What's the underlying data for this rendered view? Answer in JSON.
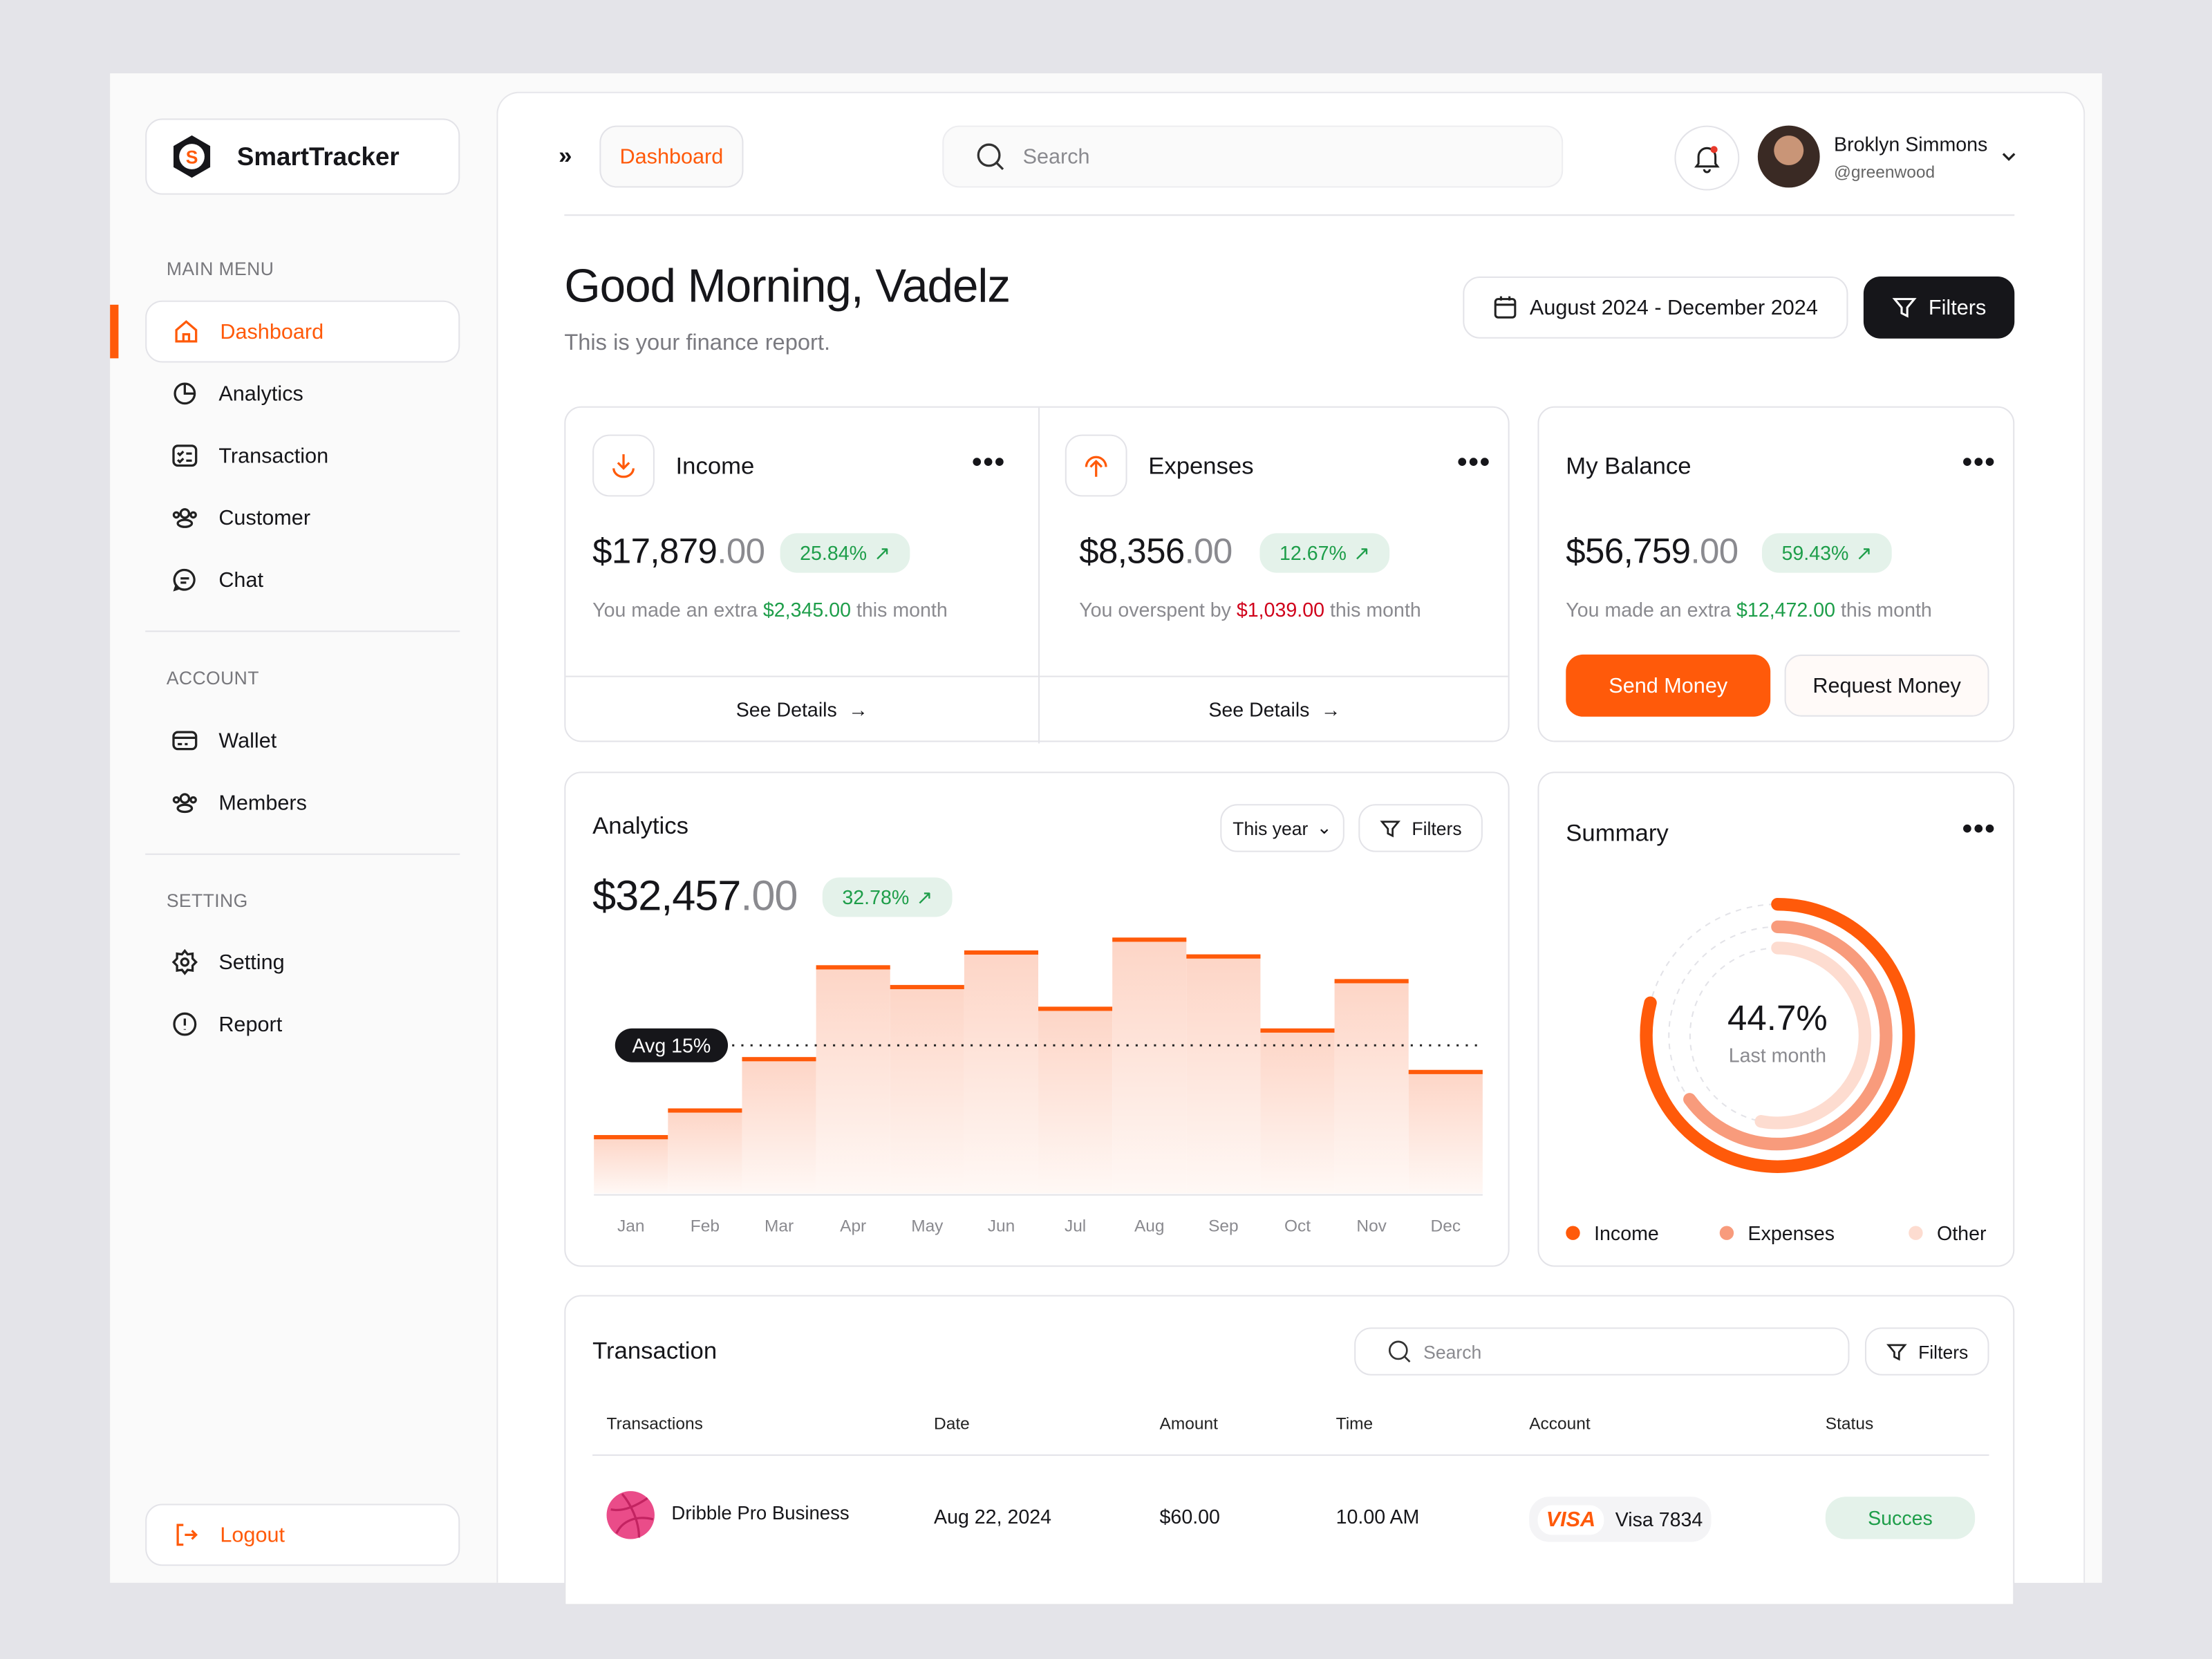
{
  "app": {
    "name": "SmartTracker",
    "logo_letter": "S"
  },
  "sidebar": {
    "sections": [
      {
        "label": "MAIN MENU",
        "items": [
          {
            "label": "Dashboard",
            "icon": "home-icon",
            "active": true
          },
          {
            "label": "Analytics",
            "icon": "pie-chart-icon"
          },
          {
            "label": "Transaction",
            "icon": "checklist-icon"
          },
          {
            "label": "Customer",
            "icon": "users-icon"
          },
          {
            "label": "Chat",
            "icon": "chat-icon"
          }
        ]
      },
      {
        "label": "ACCOUNT",
        "items": [
          {
            "label": "Wallet",
            "icon": "card-icon"
          },
          {
            "label": "Members",
            "icon": "users-icon"
          }
        ]
      },
      {
        "label": "SETTING",
        "items": [
          {
            "label": "Setting",
            "icon": "gear-icon"
          },
          {
            "label": "Report",
            "icon": "alert-circle-icon"
          }
        ]
      }
    ],
    "logout": "Logout"
  },
  "header": {
    "breadcrumb": "Dashboard",
    "search_placeholder": "Search",
    "user": {
      "name": "Broklyn Simmons",
      "handle": "@greenwood"
    }
  },
  "greeting": {
    "title": "Good Morning, Vadelz",
    "subtitle": "This is your finance report.",
    "date_range": "August 2024 - December 2024",
    "filters": "Filters"
  },
  "cards": {
    "income": {
      "title": "Income",
      "amount": "$17,879",
      "decimals": ".00",
      "change": "25.84%",
      "note_pre": "You made an extra ",
      "note_value": "$2,345.00",
      "note_post": " this month",
      "link": "See Details"
    },
    "expenses": {
      "title": "Expenses",
      "amount": "$8,356",
      "decimals": ".00",
      "change": "12.67%",
      "note_pre": "You overspent by ",
      "note_value": "$1,039.00",
      "note_post": " this month",
      "link": "See Details"
    },
    "balance": {
      "title": "My Balance",
      "amount": "$56,759",
      "decimals": ".00",
      "change": "59.43%",
      "note_pre": "You made an extra ",
      "note_value": "$12,472.00",
      "note_post": " this month",
      "send": "Send Money",
      "request": "Request Money"
    }
  },
  "analytics": {
    "title": "Analytics",
    "period": "This year",
    "filters": "Filters",
    "amount": "$32,457",
    "decimals": ".00",
    "change": "32.78%"
  },
  "summary": {
    "title": "Summary",
    "value": "44.7%",
    "caption": "Last month"
  },
  "chart_data": [
    {
      "type": "bar",
      "categories": [
        "Jan",
        "Feb",
        "Mar",
        "Apr",
        "May",
        "Jun",
        "Jul",
        "Aug",
        "Sep",
        "Oct",
        "Nov",
        "Dec"
      ],
      "values": [
        5.7,
        8.4,
        13.6,
        22.9,
        20.9,
        24.4,
        18.7,
        25.7,
        24.0,
        16.5,
        21.5,
        12.3
      ],
      "ylim": [
        0,
        30
      ],
      "reference_line": {
        "value": 15,
        "label": "Avg 15%"
      },
      "color": "#ff5a0a",
      "grid": false
    },
    {
      "type": "pie",
      "variant": "radial-rings",
      "series": [
        {
          "name": "Income",
          "value": 0.79,
          "color": "#ff5a0a"
        },
        {
          "name": "Expenses",
          "value": 0.65,
          "color": "#f89b7c"
        },
        {
          "name": "Other",
          "value": 0.53,
          "color": "#fddcd0"
        }
      ],
      "legend": "bottom"
    }
  ],
  "transactions": {
    "title": "Transaction",
    "search_placeholder": "Search",
    "filters": "Filters",
    "columns": [
      "Transactions",
      "Date",
      "Amount",
      "Time",
      "Account",
      "Status"
    ],
    "rows": [
      {
        "name": "Dribble Pro Business",
        "date": "Aug 22, 2024",
        "amount": "$60.00",
        "time": "10.00 AM",
        "account_brand": "VISA",
        "account": "Visa 7834",
        "status": "Succes"
      }
    ]
  },
  "colors": {
    "accent": "#ff5a0a",
    "success": "#1e9e4a",
    "danger": "#d0021b",
    "dark": "#16161a"
  }
}
